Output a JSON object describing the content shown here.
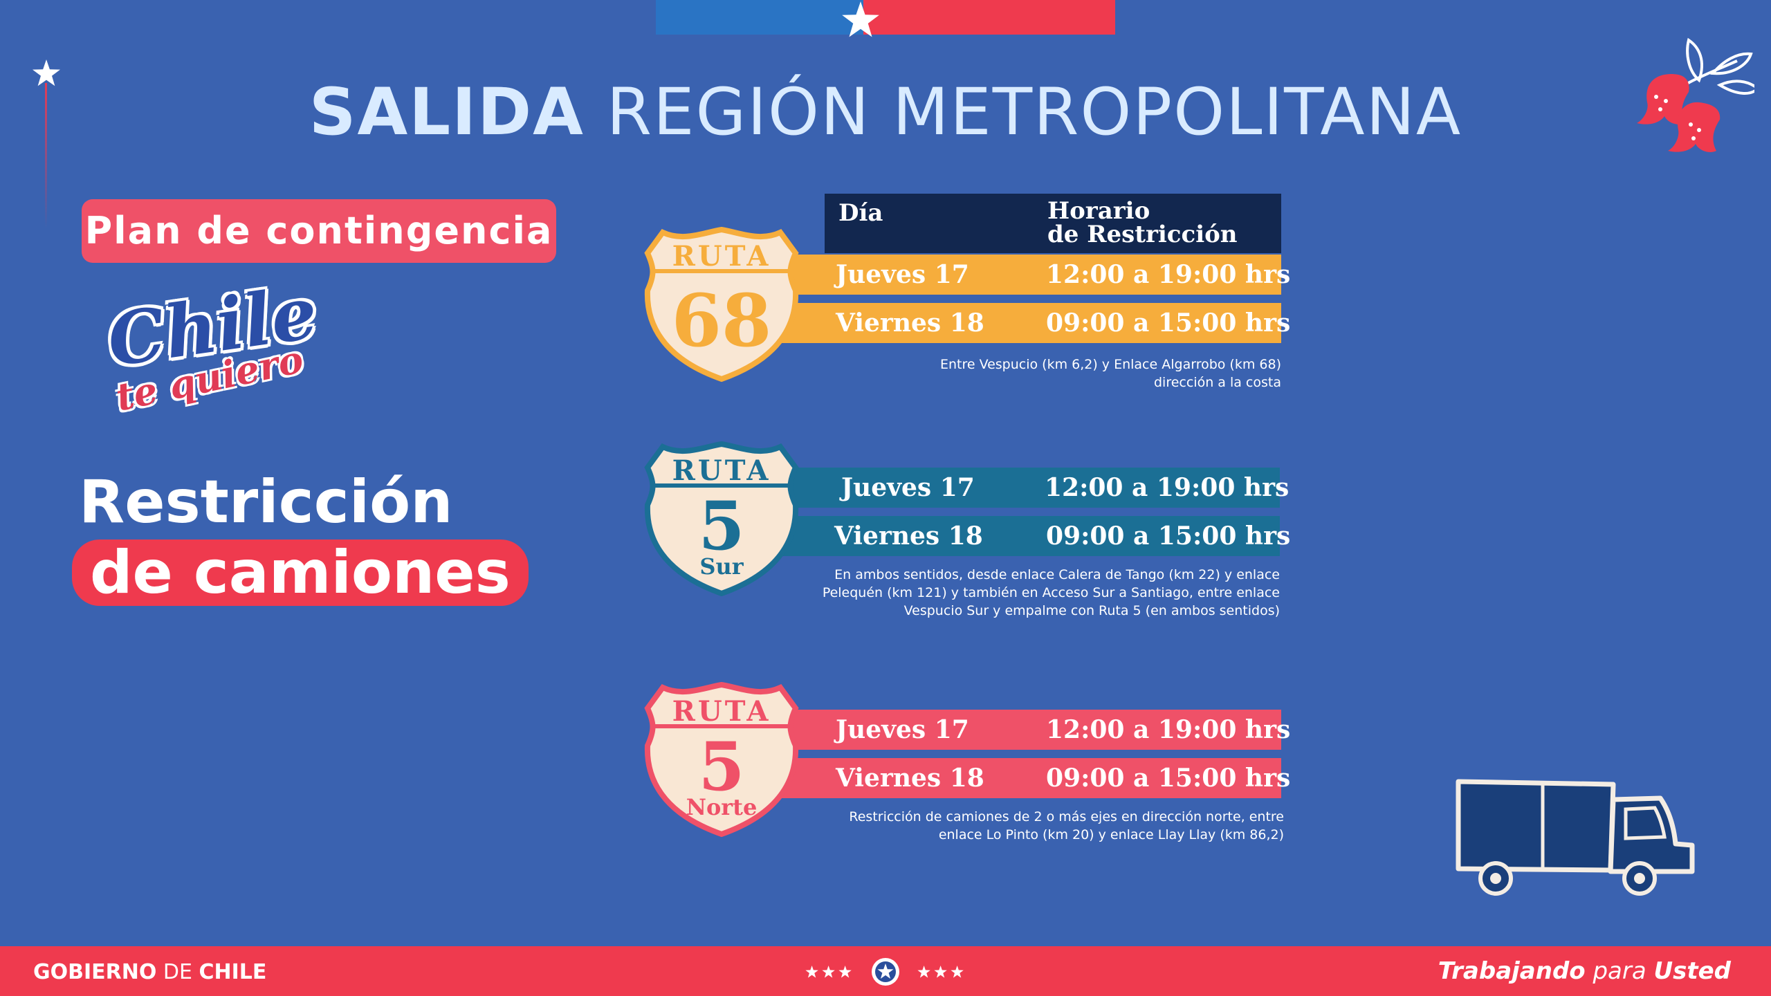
{
  "colors": {
    "background": "#3a62b0",
    "accent_red": "#ef3a4e",
    "accent_pink": "#ef5168",
    "title_blue": "#d9ebff",
    "route68_orange": "#f6ad3c",
    "route5sur_teal": "#1b6f95",
    "header_navy": "#12274f"
  },
  "title": {
    "bold": "SALIDA",
    "rest": "REGIÓN METROPOLITANA"
  },
  "sidebar": {
    "pill": "Plan de contingencia",
    "logo_line1": "Chile",
    "logo_line2": "te quiero",
    "headline_line1": "Restricción",
    "headline_line2": "de camiones"
  },
  "table_header": {
    "col1": "Día",
    "col2_line1": "Horario",
    "col2_line2": "de Restricción"
  },
  "routes": [
    {
      "shield_top": "RUTA",
      "shield_number": "68",
      "shield_sub": "",
      "rows": [
        {
          "day": "Jueves 17",
          "hours": "12:00 a 19:00 hrs"
        },
        {
          "day": "Viernes 18",
          "hours": "09:00 a 15:00 hrs"
        }
      ],
      "note_lines": [
        "Entre Vespucio (km 6,2) y Enlace Algarrobo (km 68)",
        "dirección a la costa"
      ]
    },
    {
      "shield_top": "RUTA",
      "shield_number": "5",
      "shield_sub": "Sur",
      "rows": [
        {
          "day": "Jueves 17",
          "hours": "12:00 a 19:00 hrs"
        },
        {
          "day": "Viernes 18",
          "hours": "09:00 a 15:00 hrs"
        }
      ],
      "note_lines": [
        "En ambos sentidos, desde enlace Calera de Tango (km 22) y enlace",
        "Pelequén (km 121) y también en Acceso Sur a Santiago, entre enlace",
        "Vespucio Sur y empalme con Ruta 5 (en ambos sentidos)"
      ]
    },
    {
      "shield_top": "RUTA",
      "shield_number": "5",
      "shield_sub": "Norte",
      "rows": [
        {
          "day": "Jueves 17",
          "hours": "12:00 a 19:00 hrs"
        },
        {
          "day": "Viernes 18",
          "hours": "09:00 a 15:00 hrs"
        }
      ],
      "note_lines": [
        "Restricción de camiones de 2 o más ejes en dirección norte, entre",
        "enlace Lo Pinto (km 20) y enlace Llay Llay (km 86,2)"
      ]
    }
  ],
  "footer": {
    "gob_bold1": "GOBIERNO",
    "gob_mid": "DE",
    "gob_bold2": "CHILE",
    "trab_bold1": "Trabajando",
    "trab_mid": "para",
    "trab_bold2": "Usted"
  },
  "icons": [
    "star-icon",
    "copihue-flower-icon",
    "truck-icon",
    "route-shield-icon"
  ]
}
